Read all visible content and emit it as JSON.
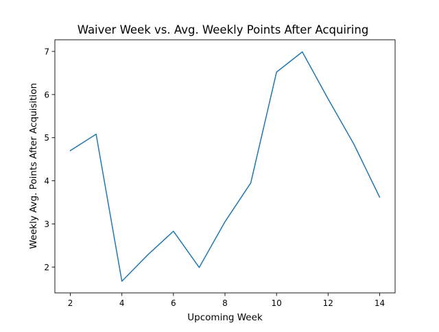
{
  "chart_data": {
    "type": "line",
    "title": "Waiver Week vs. Avg. Weekly Points After Acquiring",
    "xlabel": "Upcoming Week",
    "ylabel": "Weekly Avg. Points After Acquisition",
    "x": [
      2,
      3,
      4,
      5,
      6,
      7,
      8,
      9,
      10,
      11,
      12,
      13,
      14
    ],
    "series": [
      {
        "values": [
          4.7,
          5.08,
          1.67,
          2.28,
          2.83,
          1.99,
          3.05,
          3.95,
          6.52,
          6.99,
          5.9,
          4.85,
          3.62
        ],
        "color": "#1f77b4"
      }
    ],
    "xlim": [
      1.4,
      14.6
    ],
    "ylim": [
      1.4,
      7.27
    ],
    "xticks": [
      2,
      4,
      6,
      8,
      10,
      12,
      14
    ],
    "yticks": [
      2,
      3,
      4,
      5,
      6,
      7
    ],
    "grid": false,
    "legend": "none"
  }
}
